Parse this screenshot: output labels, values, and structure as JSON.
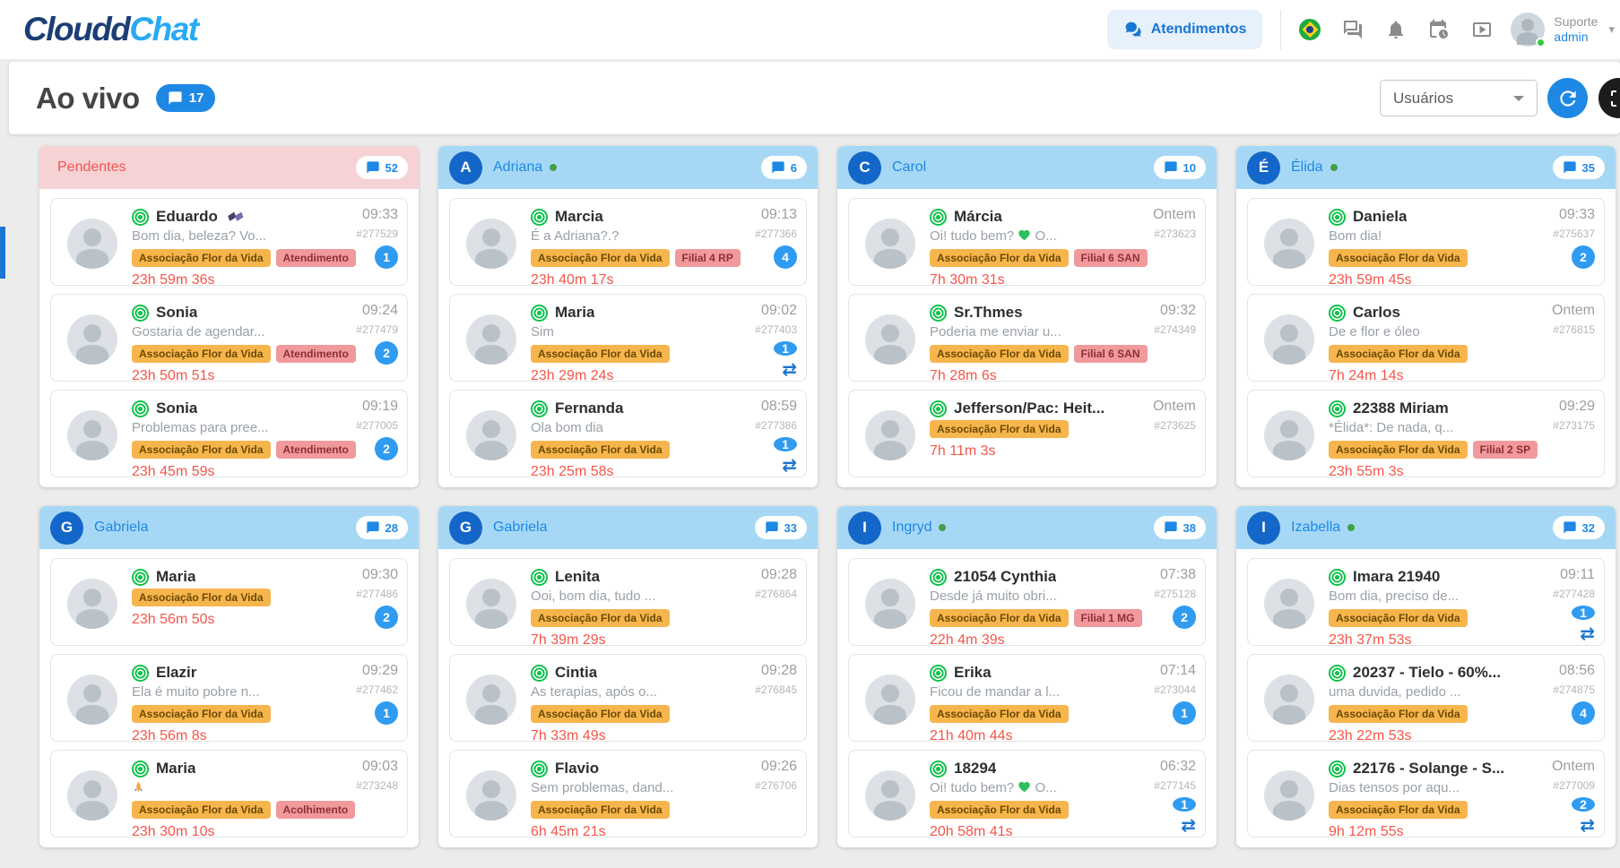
{
  "header": {
    "logo_part1": "Cloudd",
    "logo_part2": "Chat",
    "atendimentos_label": "Atendimentos",
    "icons": [
      "brazil-flag",
      "forum",
      "notifications",
      "schedule",
      "video-tutorials"
    ],
    "user": {
      "name": "Suporte",
      "role": "admin",
      "status": "online"
    }
  },
  "toolbar": {
    "title": "Ao vivo",
    "live_count": "17",
    "users_select_label": "Usuários"
  },
  "icons": {
    "transfer": "⇄",
    "select_caret": "▾"
  },
  "colors": {
    "accent_blue": "#1e88e5",
    "column_header_blue": "#a6d8f6",
    "pending_header_pink": "#f7d2d5",
    "pending_text_red": "#ef5350",
    "tag_orange_bg": "#f7b54d",
    "tag_pink_bg": "#f09a9d",
    "duration_red": "#f4564a",
    "whatsapp_green": "#0bc14a",
    "online_green": "#43a047",
    "unread_badge_blue": "#2f9bf1"
  },
  "columns": [
    {
      "type": "pending",
      "name": "Pendentes",
      "online": false,
      "count": "52",
      "initial": "",
      "cards": [
        {
          "name": "Eduardo",
          "name_decoration": "purple-flags",
          "message": "Bom dia, beleza? Vo...",
          "tags": [
            {
              "label": "Associação Flor da Vida",
              "type": "orange"
            },
            {
              "label": "Atendimento",
              "type": "pink"
            }
          ],
          "duration": "23h 59m 36s",
          "time": "09:33",
          "ticket": "#277529",
          "unread": "1",
          "transfer": false
        },
        {
          "name": "Sonia",
          "message": "Gostaria de agendar...",
          "tags": [
            {
              "label": "Associação Flor da Vida",
              "type": "orange"
            },
            {
              "label": "Atendimento",
              "type": "pink"
            }
          ],
          "duration": "23h 50m 51s",
          "time": "09:24",
          "ticket": "#277479",
          "unread": "2",
          "transfer": false
        },
        {
          "name": "Sonia",
          "message": "Problemas para pree...",
          "tags": [
            {
              "label": "Associação Flor da Vida",
              "type": "orange"
            },
            {
              "label": "Atendimento",
              "type": "pink"
            }
          ],
          "duration": "23h 45m 59s",
          "time": "09:19",
          "ticket": "#277005",
          "unread": "2",
          "transfer": false
        }
      ]
    },
    {
      "type": "agent",
      "name": "Adriana",
      "online": true,
      "count": "6",
      "initial": "A",
      "cards": [
        {
          "name": "Marcia",
          "message": "É a Adriana?.?",
          "tags": [
            {
              "label": "Associação Flor da Vida",
              "type": "orange"
            },
            {
              "label": "Filial 4 RP",
              "type": "pink"
            }
          ],
          "duration": "23h 40m 17s",
          "time": "09:13",
          "ticket": "#277366",
          "unread": "4",
          "transfer": false
        },
        {
          "name": "Maria",
          "message": "Sim",
          "tags": [
            {
              "label": "Associação Flor da Vida",
              "type": "orange"
            }
          ],
          "duration": "23h 29m 24s",
          "time": "09:02",
          "ticket": "#277403",
          "unread": "1",
          "transfer": true
        },
        {
          "name": "Fernanda",
          "message": "Ola bom dia",
          "tags": [
            {
              "label": "Associação Flor da Vida",
              "type": "orange"
            }
          ],
          "duration": "23h 25m 58s",
          "time": "08:59",
          "ticket": "#277386",
          "unread": "1",
          "transfer": true
        }
      ]
    },
    {
      "type": "agent",
      "name": "Carol",
      "online": false,
      "count": "10",
      "initial": "C",
      "cards": [
        {
          "name": "Márcia",
          "message": "Oi! tudo bem? 💚 O...",
          "tags": [
            {
              "label": "Associação Flor da Vida",
              "type": "orange"
            },
            {
              "label": "Filial 6 SAN",
              "type": "pink"
            }
          ],
          "duration": "7h 30m 31s",
          "time": "Ontem",
          "ticket": "#273623",
          "unread": "",
          "transfer": false
        },
        {
          "name": "Sr.Thmes",
          "message": "Poderia me enviar u...",
          "tags": [
            {
              "label": "Associação Flor da Vida",
              "type": "orange"
            },
            {
              "label": "Filial 6 SAN",
              "type": "pink"
            }
          ],
          "duration": "7h 28m 6s",
          "time": "09:32",
          "ticket": "#274349",
          "unread": "",
          "transfer": false
        },
        {
          "name": "Jefferson/Pac: Heit...",
          "message": "",
          "tags": [
            {
              "label": "Associação Flor da Vida",
              "type": "orange"
            }
          ],
          "duration": "7h 11m 3s",
          "time": "Ontem",
          "ticket": "#273625",
          "unread": "",
          "transfer": false
        }
      ]
    },
    {
      "type": "agent",
      "name": "Élida",
      "online": true,
      "count": "35",
      "initial": "É",
      "cards": [
        {
          "name": "Daniela",
          "message": "Bom dia!",
          "tags": [
            {
              "label": "Associação Flor da Vida",
              "type": "orange"
            }
          ],
          "duration": "23h 59m 45s",
          "time": "09:33",
          "ticket": "#275637",
          "unread": "2",
          "transfer": false
        },
        {
          "name": "Carlos",
          "message": "De e flor e óleo",
          "tags": [
            {
              "label": "Associação Flor da Vida",
              "type": "orange"
            }
          ],
          "duration": "7h 24m 14s",
          "time": "Ontem",
          "ticket": "#276815",
          "unread": "",
          "transfer": false
        },
        {
          "name": "22388 Miriam",
          "message": "*Élida*: De nada, q...",
          "tags": [
            {
              "label": "Associação Flor da Vida",
              "type": "orange"
            },
            {
              "label": "Filial 2 SP",
              "type": "pink"
            }
          ],
          "duration": "23h 55m 3s",
          "time": "09:29",
          "ticket": "#273175",
          "unread": "",
          "transfer": false
        }
      ]
    },
    {
      "type": "agent",
      "name": "Gabriela",
      "online": false,
      "count": "28",
      "initial": "G",
      "cards": [
        {
          "name": "Maria",
          "message": "",
          "tags": [
            {
              "label": "Associação Flor da Vida",
              "type": "orange"
            }
          ],
          "duration": "23h 56m 50s",
          "time": "09:30",
          "ticket": "#277486",
          "unread": "2",
          "transfer": false
        },
        {
          "name": "Elazir",
          "message": "Ela é muito pobre n...",
          "tags": [
            {
              "label": "Associação Flor da Vida",
              "type": "orange"
            }
          ],
          "duration": "23h 56m 8s",
          "time": "09:29",
          "ticket": "#277462",
          "unread": "1",
          "transfer": false
        },
        {
          "name": "Maria",
          "message": "🙏",
          "tags": [
            {
              "label": "Associação Flor da Vida",
              "type": "orange"
            },
            {
              "label": "Acolhimento",
              "type": "pink"
            }
          ],
          "duration": "23h 30m 10s",
          "time": "09:03",
          "ticket": "#273248",
          "unread": "",
          "transfer": false
        }
      ]
    },
    {
      "type": "agent",
      "name": "Gabriela",
      "online": false,
      "count": "33",
      "initial": "G",
      "cards": [
        {
          "name": "Lenita",
          "message": "Ooi, bom dia, tudo ...",
          "tags": [
            {
              "label": "Associação Flor da Vida",
              "type": "orange"
            }
          ],
          "duration": "7h 39m 29s",
          "time": "09:28",
          "ticket": "#276864",
          "unread": "",
          "transfer": false
        },
        {
          "name": "Cintia",
          "message": "As terapias, após o...",
          "tags": [
            {
              "label": "Associação Flor da Vida",
              "type": "orange"
            }
          ],
          "duration": "7h 33m 49s",
          "time": "09:28",
          "ticket": "#276845",
          "unread": "",
          "transfer": false
        },
        {
          "name": "Flavio",
          "message": "Sem problemas, dand...",
          "tags": [
            {
              "label": "Associação Flor da Vida",
              "type": "orange"
            }
          ],
          "duration": "6h 45m 21s",
          "time": "09:26",
          "ticket": "#276706",
          "unread": "",
          "transfer": false
        }
      ]
    },
    {
      "type": "agent",
      "name": "Ingryd",
      "online": true,
      "count": "38",
      "initial": "I",
      "cards": [
        {
          "name": "21054 Cynthia",
          "message": "Desde já muito obri...",
          "tags": [
            {
              "label": "Associação Flor da Vida",
              "type": "orange"
            },
            {
              "label": "Filial 1 MG",
              "type": "pink"
            }
          ],
          "duration": "22h 4m 39s",
          "time": "07:38",
          "ticket": "#275128",
          "unread": "2",
          "transfer": false
        },
        {
          "name": "Erika",
          "message": "Ficou de mandar a l...",
          "tags": [
            {
              "label": "Associação Flor da Vida",
              "type": "orange"
            }
          ],
          "duration": "21h 40m 44s",
          "time": "07:14",
          "ticket": "#273044",
          "unread": "1",
          "transfer": false
        },
        {
          "name": "18294",
          "message": "Oi! tudo bem? 💚 O...",
          "tags": [
            {
              "label": "Associação Flor da Vida",
              "type": "orange"
            }
          ],
          "duration": "20h 58m 41s",
          "time": "06:32",
          "ticket": "#277145",
          "unread": "1",
          "transfer": true
        }
      ]
    },
    {
      "type": "agent",
      "name": "Izabella",
      "online": true,
      "count": "32",
      "initial": "I",
      "cards": [
        {
          "name": "Imara 21940",
          "message": "Bom dia, preciso de...",
          "tags": [
            {
              "label": "Associação Flor da Vida",
              "type": "orange"
            }
          ],
          "duration": "23h 37m 53s",
          "time": "09:11",
          "ticket": "#277428",
          "unread": "1",
          "transfer": true
        },
        {
          "name": "20237 - Tielo - 60%...",
          "message": "uma duvida, pedido ...",
          "tags": [
            {
              "label": "Associação Flor da Vida",
              "type": "orange"
            }
          ],
          "duration": "23h 22m 53s",
          "time": "08:56",
          "ticket": "#274875",
          "unread": "4",
          "transfer": false
        },
        {
          "name": "22176 - Solange - S...",
          "message": "Dias tensos por aqu...",
          "tags": [
            {
              "label": "Associação Flor da Vida",
              "type": "orange"
            }
          ],
          "duration": "9h 12m 55s",
          "time": "Ontem",
          "ticket": "#277009",
          "unread": "2",
          "transfer": true
        }
      ]
    }
  ]
}
